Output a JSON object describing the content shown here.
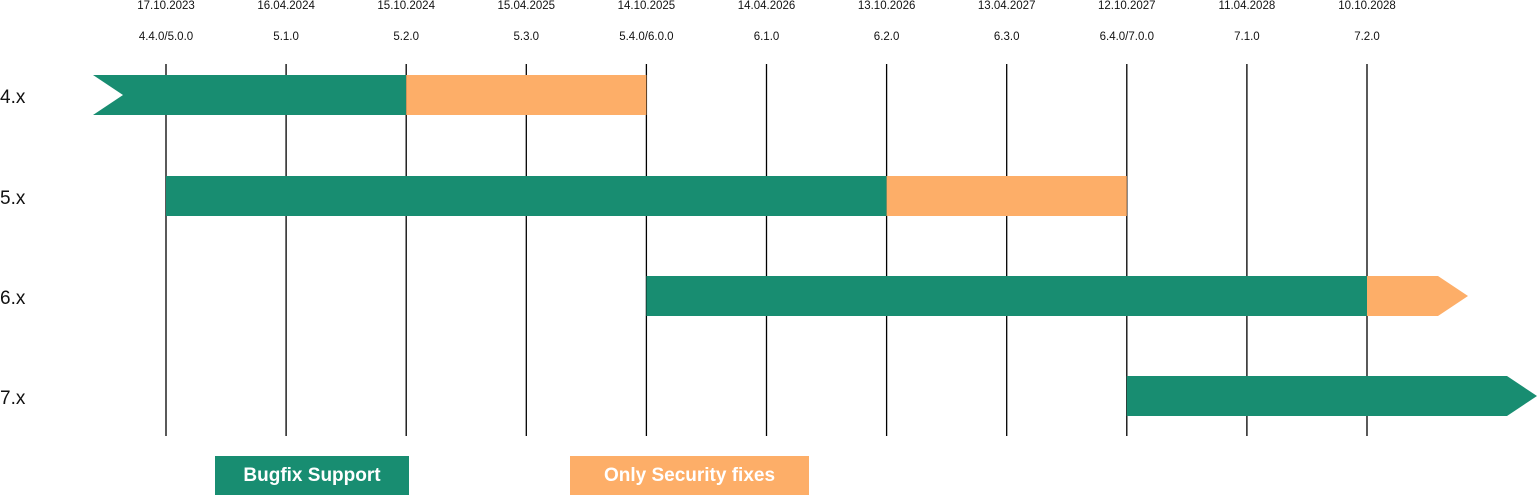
{
  "chart_data": {
    "type": "gantt",
    "title": "",
    "colors": {
      "bugfix": "#188d71",
      "security": "#fdae68",
      "gridline": "#000000"
    },
    "columns": [
      {
        "date": "17.10.2023",
        "version": "4.4.0/5.0.0"
      },
      {
        "date": "16.04.2024",
        "version": "5.1.0"
      },
      {
        "date": "15.10.2024",
        "version": "5.2.0"
      },
      {
        "date": "15.04.2025",
        "version": "5.3.0"
      },
      {
        "date": "14.10.2025",
        "version": "5.4.0/6.0.0"
      },
      {
        "date": "14.04.2026",
        "version": "6.1.0"
      },
      {
        "date": "13.10.2026",
        "version": "6.2.0"
      },
      {
        "date": "13.04.2027",
        "version": "6.3.0"
      },
      {
        "date": "12.10.2027",
        "version": "6.4.0/7.0.0"
      },
      {
        "date": "11.04.2028",
        "version": "7.1.0"
      },
      {
        "date": "10.10.2028",
        "version": "7.2.0"
      }
    ],
    "series": [
      {
        "label": "4.x",
        "bugfix": [
          "before 17.10.2023",
          "15.10.2024"
        ],
        "security": [
          "15.10.2024",
          "14.10.2025"
        ],
        "continues_before": true,
        "continues_after": false
      },
      {
        "label": "5.x",
        "bugfix": [
          "17.10.2023",
          "13.10.2026"
        ],
        "security": [
          "13.10.2026",
          "12.10.2027"
        ],
        "continues_before": false,
        "continues_after": false
      },
      {
        "label": "6.x",
        "bugfix": [
          "14.10.2025",
          "10.10.2028"
        ],
        "security": [
          "10.10.2028",
          "after 10.10.2028"
        ],
        "continues_before": false,
        "continues_after": true
      },
      {
        "label": "7.x",
        "bugfix": [
          "12.10.2027",
          "after 10.10.2028"
        ],
        "security": null,
        "continues_before": false,
        "continues_after": true
      }
    ],
    "legend": [
      {
        "key": "bugfix",
        "label": "Bugfix Support"
      },
      {
        "key": "security",
        "label": "Only Security fixes"
      }
    ]
  }
}
